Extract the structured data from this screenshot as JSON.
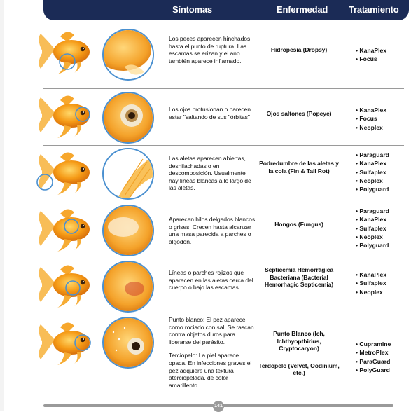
{
  "header": {
    "symptoms": "Síntomas",
    "disease": "Enfermedad",
    "treatment": "Tratamiento"
  },
  "rows": [
    {
      "symptom": "Los peces aparecen hinchados hasta el punto de ruptura. Las escamas se erizan y el ano también aparece inflamado.",
      "disease": "Hidropesía (Dropsy)",
      "treatments": [
        "KanaPlex",
        "Focus"
      ]
    },
    {
      "symptom": "Los ojos protusionan o parecen estar \"saltando de sus \"órbitas\"",
      "disease": "Ojos saltones (Popeye)",
      "treatments": [
        "KanaPlex",
        "Focus",
        "Neoplex"
      ]
    },
    {
      "symptom": "Las aletas aparecen abiertas, deshilachadas o en descomposición. Usualmente hay líneas blancas a lo largo de las aletas.",
      "disease": "Podredumbre de las aletas y la cola (Fin & Tail Rot)",
      "treatments": [
        "Paraguard",
        "KanaPlex",
        "Sulfaplex",
        "Neoplex",
        "Polyguard"
      ]
    },
    {
      "symptom": "Aparecen hilos delgados blancos o grises. Crecen hasta alcanzar una masa parecida a parches o algodón.",
      "disease": "Hongos (Fungus)",
      "treatments": [
        "Paraguard",
        "KanaPlex",
        "Sulfaplex",
        "Neoplex",
        "Polyguard"
      ]
    },
    {
      "symptom": "Líneas o parches rojizos que aparecen en las aletas cerca del cuerpo o bajo las escamas.",
      "disease": "Septicemia Hemorrágica Bacteriana (Bacterial Hemorhagic Septicemia)",
      "treatments": [
        "KanaPlex",
        "Sulfaplex",
        "Neoplex"
      ]
    },
    {
      "symptom": "Punto blanco: El pez aparece como rociado con sal. Se rascan contra objetos duros para liberarse del parásito.",
      "symptom2": "Terciopelo: La piel aparece opaca. En infecciones graves el pez adquiere una textura aterciopelada. de color amarillento.",
      "disease": "Punto Blanco (Ich, Ichthyopthirius, Cryptocaryon)",
      "disease2": "Terdopelo (Velvet, Oodinium, etc.)",
      "treatments": [
        "Cupramine",
        "MetroPlex",
        "ParaGuard",
        "PolyGuard"
      ]
    }
  ],
  "page_number": "141",
  "colors": {
    "header_bg": "#1b2b56",
    "circle_border": "#4a90d0",
    "fish_orange": "#f39a1c"
  }
}
